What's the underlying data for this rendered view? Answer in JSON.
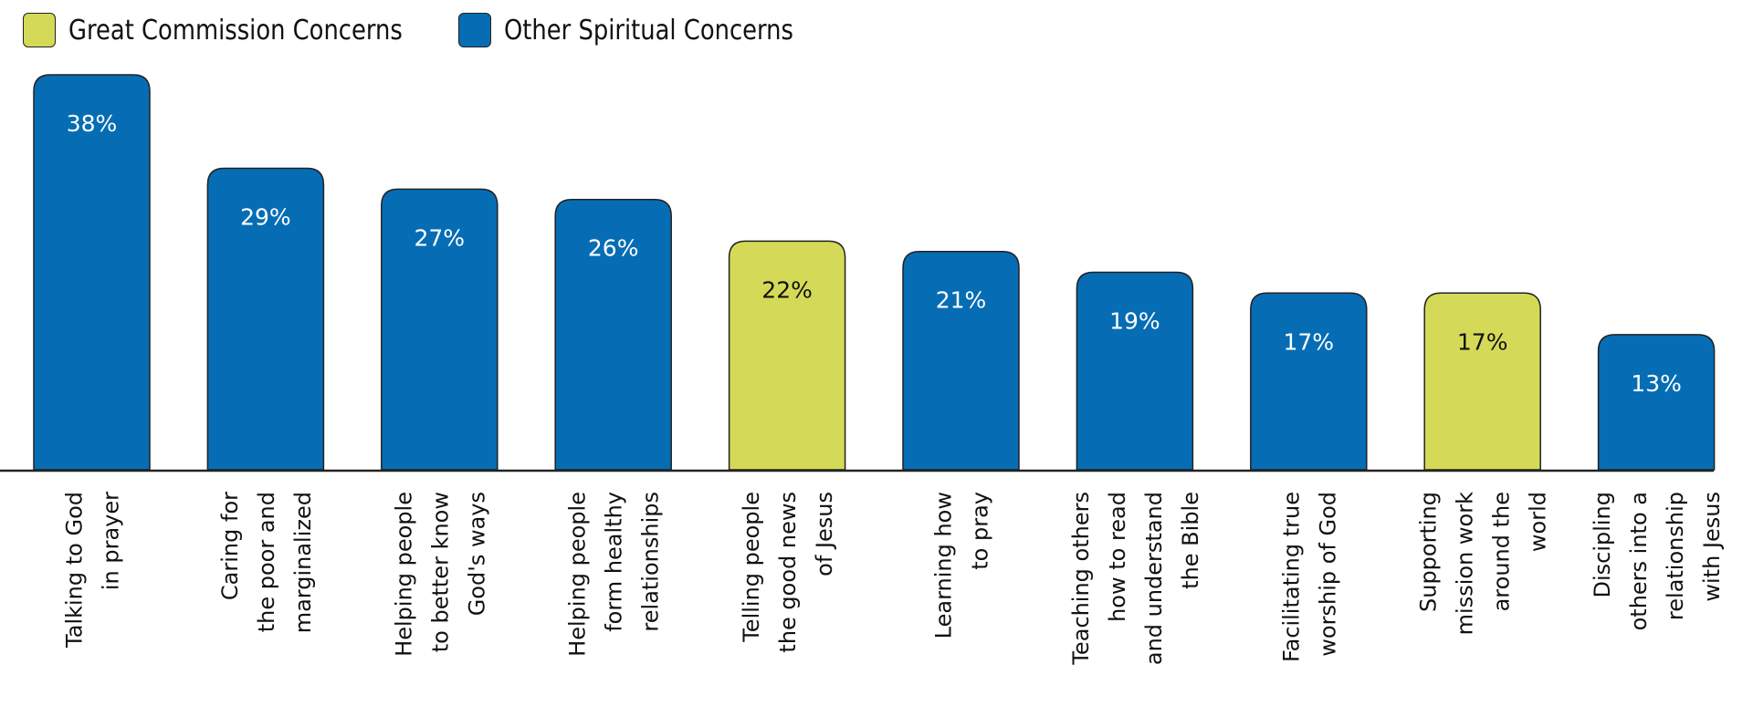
{
  "chart_data": {
    "type": "bar",
    "title": "",
    "xlabel": "",
    "ylabel": "",
    "ylim": [
      0,
      38
    ],
    "grid": false,
    "legend_placement": "top-left",
    "legend": [
      {
        "name": "Great Commission Concerns",
        "color": "#d4da57"
      },
      {
        "name": "Other Spiritual Concerns",
        "color": "#066db4"
      }
    ],
    "categories": [
      [
        "Talking to God",
        "in prayer"
      ],
      [
        "Caring for",
        "the poor and",
        "marginalized"
      ],
      [
        "Helping people",
        "to better know",
        "God's ways"
      ],
      [
        "Helping people",
        "form healthy",
        "relationships"
      ],
      [
        "Telling people",
        "the good news",
        "of  Jesus"
      ],
      [
        "Learning how",
        "to pray"
      ],
      [
        "Teaching others",
        "how to read",
        "and understand",
        "the Bible"
      ],
      [
        "Facilitating true",
        "worship of God"
      ],
      [
        "Supporting",
        "mission work",
        "around the",
        "world"
      ],
      [
        "Discipling",
        "others into a",
        "relationship",
        "with Jesus"
      ]
    ],
    "values": [
      38,
      29,
      27,
      26,
      22,
      21,
      19,
      17,
      17,
      13
    ],
    "labels": [
      "38%",
      "29%",
      "27%",
      "26%",
      "22%",
      "21%",
      "19%",
      "17%",
      "17%",
      "13%"
    ],
    "groups": [
      1,
      1,
      1,
      1,
      0,
      1,
      1,
      1,
      0,
      1
    ]
  }
}
